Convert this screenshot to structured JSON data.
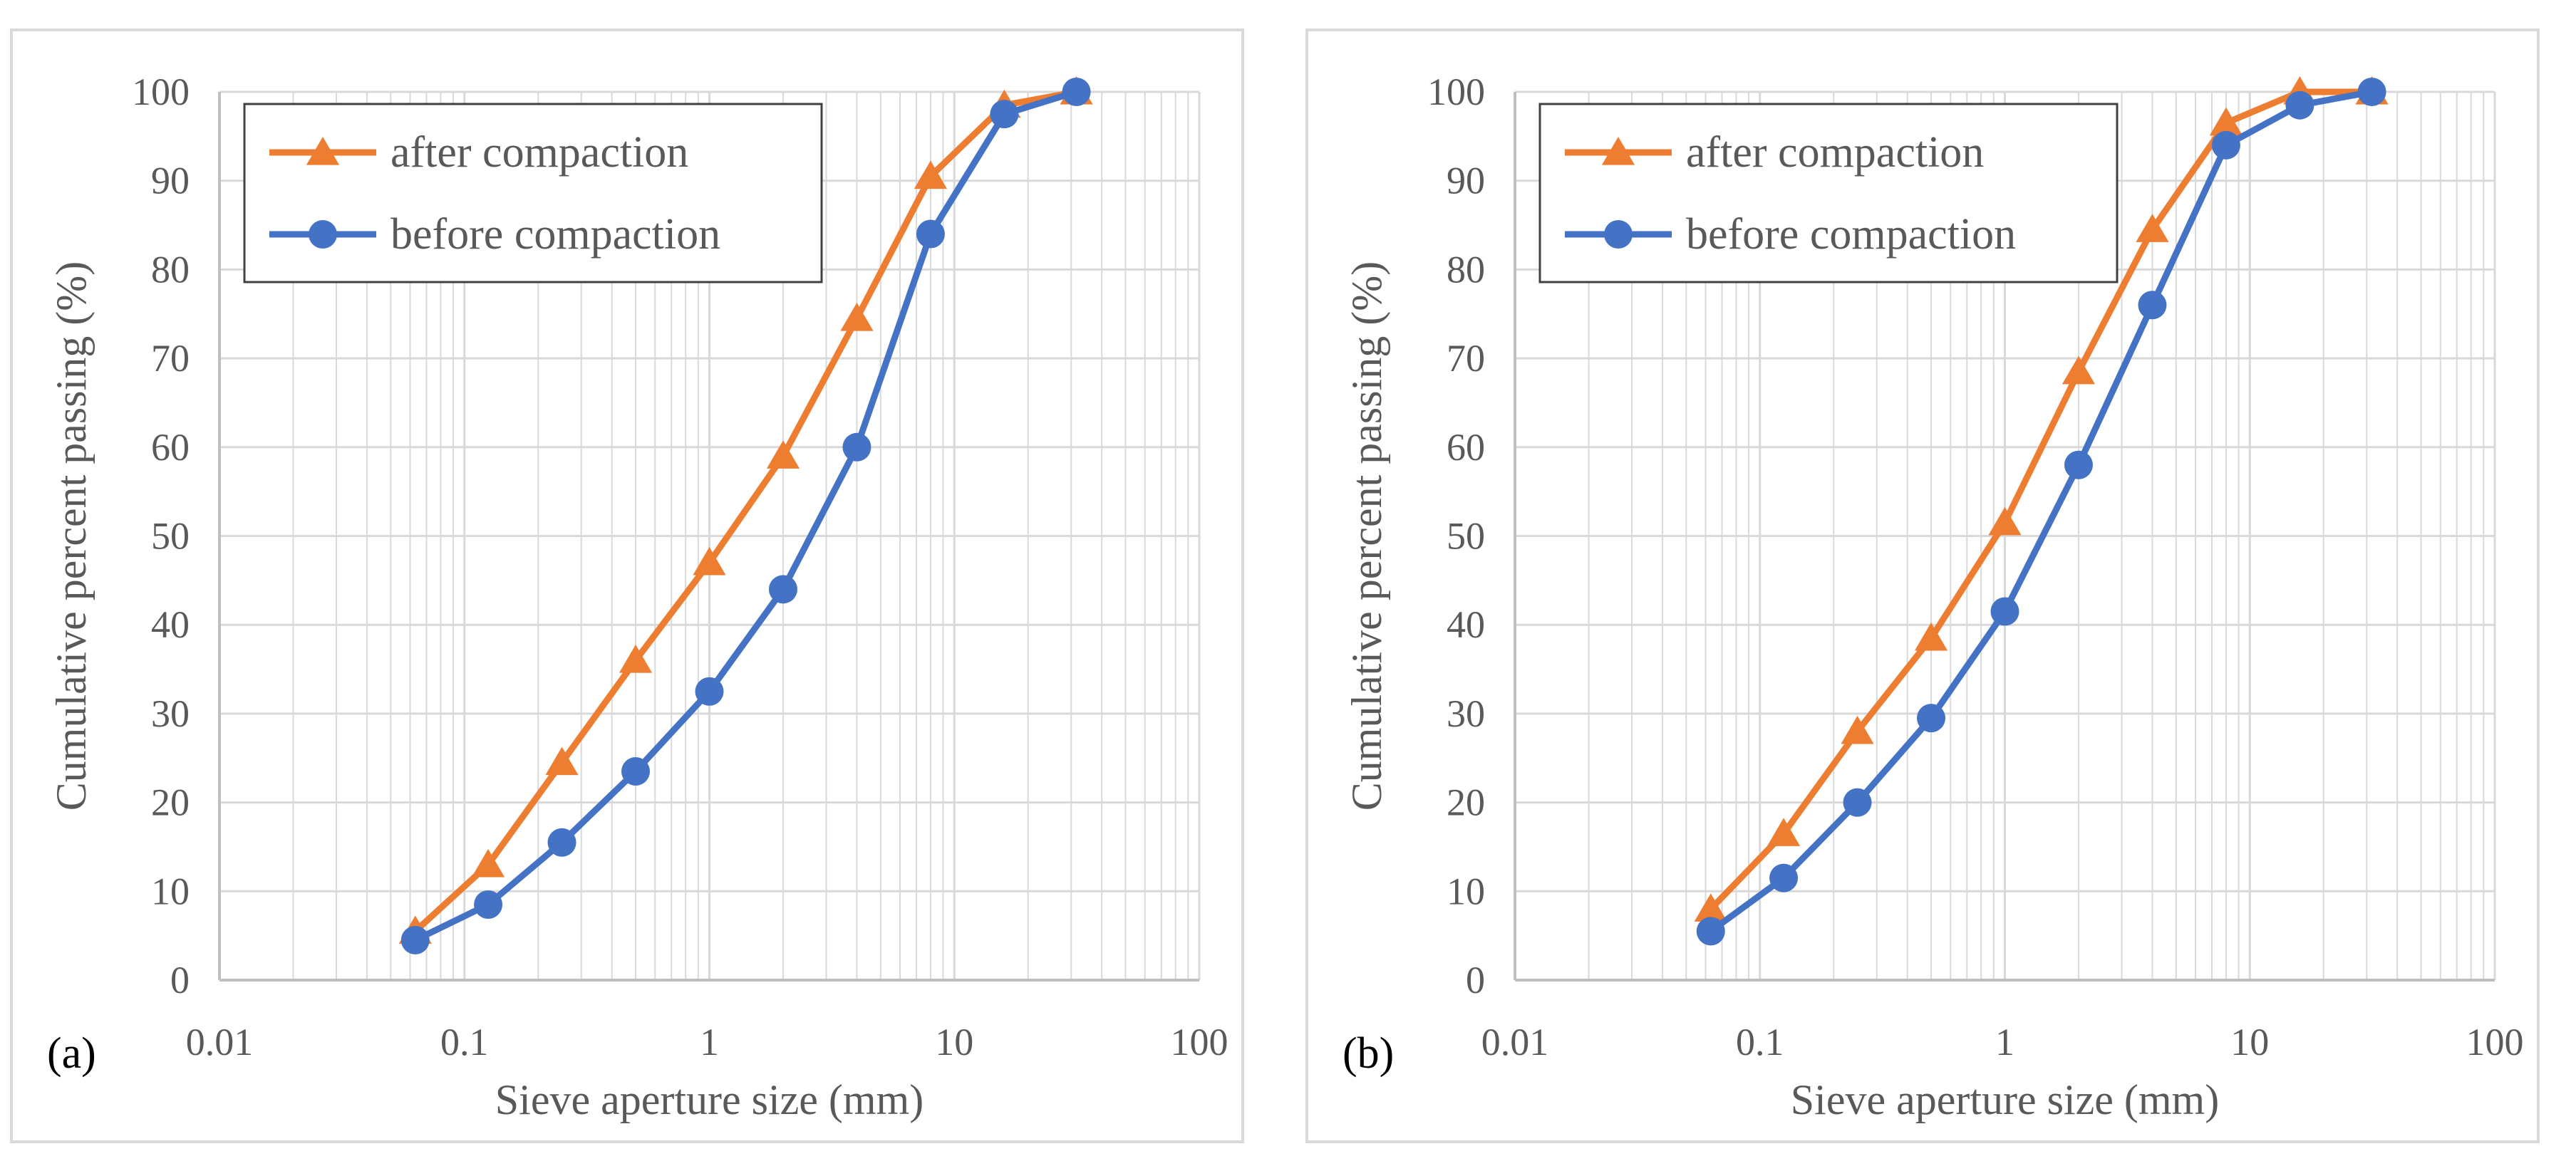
{
  "colors": {
    "after": "#ED7D31",
    "before": "#4472C4",
    "grid": "#d9d9d9",
    "axis": "#bfbfbf",
    "text": "#595959"
  },
  "chart_data": [
    {
      "type": "line",
      "panel_label": "(a)",
      "xlabel": "Sieve aperture size (mm)",
      "ylabel": "Cumulative  percent passing (%)",
      "xscale": "log",
      "xlim": [
        0.01,
        100
      ],
      "ylim": [
        0,
        100
      ],
      "x_ticks": [
        "0.01",
        "0.1",
        "1",
        "10",
        "100"
      ],
      "y_ticks": [
        "0",
        "10",
        "20",
        "30",
        "40",
        "50",
        "60",
        "70",
        "80",
        "90",
        "100"
      ],
      "grid": true,
      "legend_position": "top-left",
      "x": [
        0.063,
        0.125,
        0.25,
        0.5,
        1,
        2,
        4,
        8,
        16,
        31.5
      ],
      "series": [
        {
          "name": "after compaction",
          "marker": "triangle",
          "color": "#ED7D31",
          "values": [
            5.5,
            13,
            24.5,
            36,
            47,
            59,
            74.5,
            90.5,
            98.5,
            100
          ]
        },
        {
          "name": "before compaction",
          "marker": "circle",
          "color": "#4472C4",
          "values": [
            4.5,
            8.5,
            15.5,
            23.5,
            32.5,
            44,
            60,
            84,
            97.5,
            100
          ]
        }
      ]
    },
    {
      "type": "line",
      "panel_label": "(b)",
      "xlabel": "Sieve aperture size (mm)",
      "ylabel": "Cumulative  percent passing (%)",
      "xscale": "log",
      "xlim": [
        0.01,
        100
      ],
      "ylim": [
        0,
        100
      ],
      "x_ticks": [
        "0.01",
        "0.1",
        "1",
        "10",
        "100"
      ],
      "y_ticks": [
        "0",
        "10",
        "20",
        "30",
        "40",
        "50",
        "60",
        "70",
        "80",
        "90",
        "100"
      ],
      "grid": true,
      "legend_position": "top-left",
      "x": [
        0.063,
        0.125,
        0.25,
        0.5,
        1,
        2,
        4,
        8,
        16,
        31.5
      ],
      "series": [
        {
          "name": "after compaction",
          "marker": "triangle",
          "color": "#ED7D31",
          "values": [
            8,
            16.5,
            28,
            38.5,
            51.5,
            68.5,
            84.5,
            96.5,
            100,
            100
          ]
        },
        {
          "name": "before compaction",
          "marker": "circle",
          "color": "#4472C4",
          "values": [
            5.5,
            11.5,
            20,
            29.5,
            41.5,
            58,
            76,
            94,
            98.5,
            100
          ]
        }
      ]
    }
  ]
}
